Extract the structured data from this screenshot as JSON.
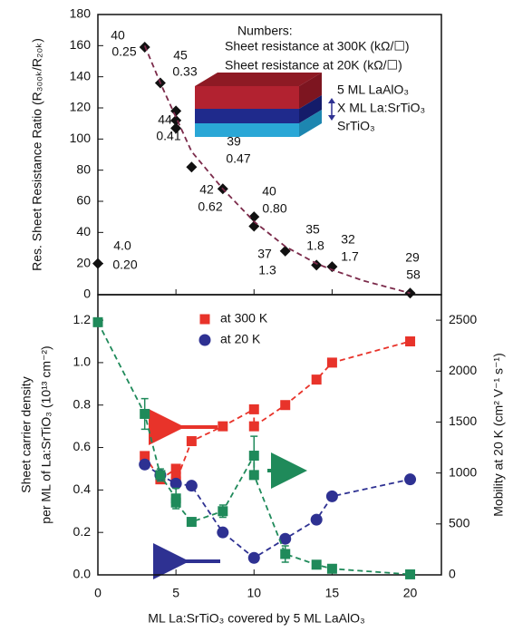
{
  "chart_data": [
    {
      "type": "scatter",
      "ylabel": "Res. Sheet Resistance Ratio (R₃₀₀ₖ/R₂₀ₖ)",
      "xlim": [
        0,
        22
      ],
      "ylim": [
        0,
        180
      ],
      "yticks": [
        0,
        20,
        40,
        60,
        80,
        100,
        120,
        140,
        160,
        180
      ],
      "xticks": [
        0,
        5,
        10,
        15,
        20
      ],
      "series": [
        {
          "color": "#111111",
          "marker": "diamond",
          "x": [
            0,
            3,
            4,
            5,
            5,
            5,
            6,
            8,
            10,
            10,
            12,
            14,
            15,
            20
          ],
          "values": [
            20,
            159,
            136,
            118,
            112,
            107,
            82,
            68,
            50,
            44,
            28,
            19,
            18,
            1
          ]
        },
        {
          "color": "#7b2a4a",
          "marker": "dashed",
          "x": [
            3,
            4,
            5,
            6,
            8,
            10,
            12,
            14,
            15,
            17,
            20
          ],
          "values": [
            160,
            136,
            114,
            92,
            68,
            47,
            31,
            20,
            16,
            9,
            1
          ]
        }
      ],
      "legend_title": "Numbers:",
      "annotation_legend": [
        {
          "text": "Sheet resistance at 300K (kΩ/☐)",
          "color": "#e8332a"
        },
        {
          "text": "Sheet resistance at 20K (kΩ/☐)",
          "color": "#2e3192"
        }
      ],
      "annotations": [
        {
          "at_300K": "40",
          "at_20K": "0.25"
        },
        {
          "at_300K": "45",
          "at_20K": "0.33"
        },
        {
          "at_300K": "44",
          "at_20K": "0.41"
        },
        {
          "at_300K": "39",
          "at_20K": "0.47"
        },
        {
          "at_300K": "42",
          "at_20K": "0.62"
        },
        {
          "at_300K": "40",
          "at_20K": "0.80"
        },
        {
          "at_300K": "37",
          "at_20K": "1.3"
        },
        {
          "at_300K": "35",
          "at_20K": "1.8"
        },
        {
          "at_300K": "32",
          "at_20K": "1.7"
        },
        {
          "at_300K": "29",
          "at_20K": "58"
        },
        {
          "at_300K": "4.0",
          "at_20K": "0.20"
        }
      ],
      "inset_labels": [
        "5 ML LaAlO₃",
        "X ML La:SrTiO₃",
        "SrTiO₃"
      ]
    },
    {
      "type": "scatter",
      "xlabel": "ML La:SrTiO₃ covered by 5 ML LaAlO₃",
      "ylabel": [
        "Sheet carrier density",
        "per ML of La:SrTiO₃ (10¹³ cm⁻²)"
      ],
      "y2label": "Mobility at 20 K (cm² V⁻¹ s⁻¹)",
      "xlim": [
        0,
        22
      ],
      "ylim": [
        0,
        1.32
      ],
      "y2lim": [
        0,
        2750
      ],
      "xticks": [
        0,
        5,
        10,
        15,
        20
      ],
      "yticks": [
        {
          "value": 0,
          "label": "0.0"
        },
        0.2,
        0.4,
        0.6,
        0.8,
        {
          "value": 1,
          "label": "1.0"
        },
        1.2
      ],
      "y2ticks": [
        0,
        500,
        1000,
        1500,
        2000,
        2500
      ],
      "series": [
        {
          "name": "at 300 K",
          "color": "#e8332a",
          "marker": "square",
          "x": [
            3,
            4,
            5,
            5,
            5,
            6,
            8,
            10,
            10,
            12,
            14,
            15,
            20
          ],
          "values": [
            0.56,
            0.45,
            0.5,
            0.46,
            0.44,
            0.63,
            0.7,
            0.78,
            0.7,
            0.8,
            0.92,
            1.0,
            1.1
          ]
        },
        {
          "name": "at 20 K",
          "color": "#2e3192",
          "marker": "circle",
          "x": [
            3,
            4,
            5,
            6,
            8,
            10,
            12,
            14,
            15,
            20
          ],
          "values": [
            0.52,
            0.47,
            0.43,
            0.42,
            0.2,
            0.08,
            0.17,
            0.26,
            0.37,
            0.45
          ]
        },
        {
          "color": "#1f8a5a",
          "marker": "square",
          "axis": "y2",
          "x": [
            0,
            3,
            4,
            5,
            5,
            6,
            8,
            10,
            10,
            12,
            14,
            15,
            20
          ],
          "values": [
            2480,
            1580,
            980,
            750,
            710,
            520,
            625,
            1170,
            980,
            205,
            100,
            60,
            5
          ],
          "errors": [
            null,
            150,
            60,
            100,
            null,
            40,
            60,
            190,
            null,
            80,
            null,
            null,
            null
          ]
        }
      ]
    }
  ]
}
